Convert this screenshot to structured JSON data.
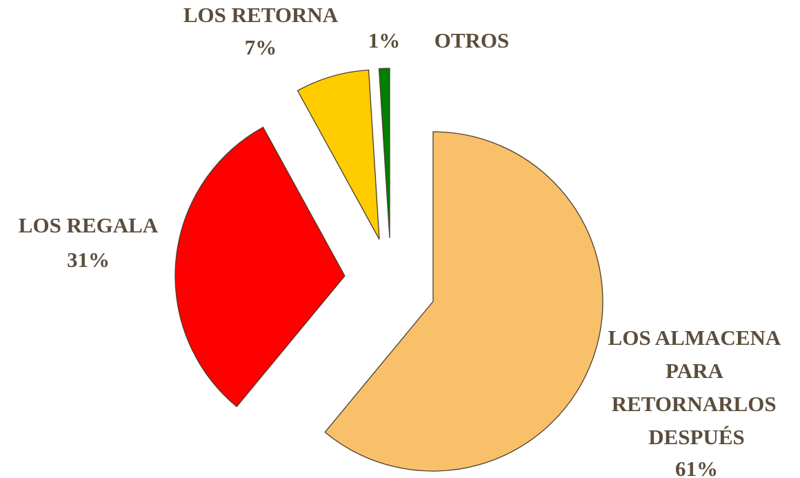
{
  "chart_data": {
    "type": "pie",
    "categories": [
      "LOS ALMACENA PARA RETORNARLOS DESPUÉS",
      "LOS REGALA",
      "LOS RETORNA",
      "OTROS"
    ],
    "values": [
      61,
      31,
      7,
      1
    ],
    "value_labels": [
      "61%",
      "31%",
      "7%",
      "1%"
    ],
    "colors": [
      "#f9c06a",
      "#ff0000",
      "#ffcc00",
      "#008000"
    ]
  }
}
